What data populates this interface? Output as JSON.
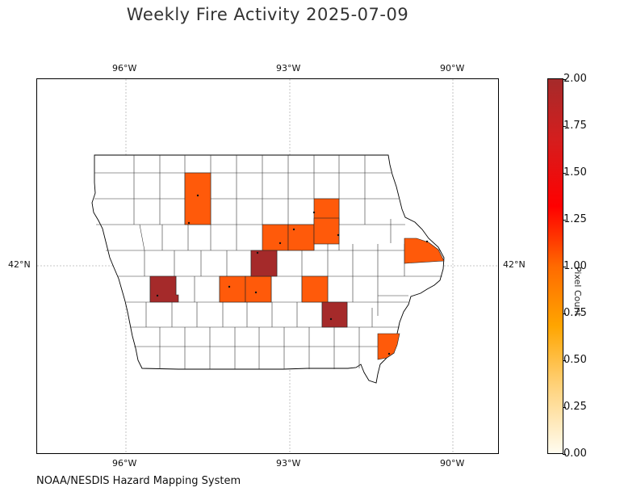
{
  "title": "Weekly Fire Activity 2025-07-09",
  "footer": "NOAA/NESDIS Hazard Mapping System",
  "axes": {
    "lon_ticks": [
      "96°W",
      "93°W",
      "90°W"
    ],
    "lat_ticks": [
      "42°N"
    ]
  },
  "colorbar": {
    "label": "Pixel Count",
    "ticks": [
      "0.00",
      "0.25",
      "0.50",
      "0.75",
      "1.00",
      "1.25",
      "1.50",
      "1.75",
      "2.00"
    ],
    "range": [
      0,
      2
    ],
    "colors": [
      "#fffcf0",
      "#ffd27a",
      "#ffa500",
      "#ff6a00",
      "#ff1a00",
      "#d41e1e",
      "#a52a2a"
    ]
  },
  "chart_data": {
    "type": "choropleth",
    "region": "Iowa counties",
    "value_name": "Pixel Count",
    "highlighted_counties": [
      {
        "value": 1,
        "color": "#ff5a0a"
      },
      {
        "value": 1,
        "color": "#ff5a0a"
      },
      {
        "value": 1,
        "color": "#ff5a0a"
      },
      {
        "value": 1,
        "color": "#ff5a0a"
      },
      {
        "value": 1,
        "color": "#ff5a0a"
      },
      {
        "value": 1,
        "color": "#ff5a0a"
      },
      {
        "value": 1,
        "color": "#ff5a0a"
      },
      {
        "value": 1,
        "color": "#ff5a0a"
      },
      {
        "value": 1,
        "color": "#ff5a0a"
      },
      {
        "value": 2,
        "color": "#a52a2a"
      },
      {
        "value": 2,
        "color": "#a52a2a"
      },
      {
        "value": 2,
        "color": "#a52a2a"
      }
    ]
  }
}
